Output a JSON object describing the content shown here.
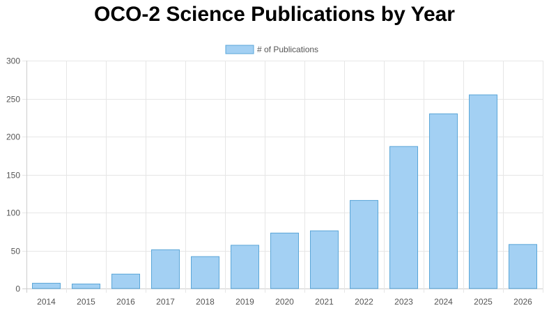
{
  "chart_data": {
    "type": "bar",
    "title": "OCO-2 Science Publications by Year",
    "categories": [
      "2014",
      "2015",
      "2016",
      "2017",
      "2018",
      "2019",
      "2020",
      "2021",
      "2022",
      "2023",
      "2024",
      "2025",
      "2026"
    ],
    "series": [
      {
        "name": "# of Publications",
        "values": [
          7,
          6,
          19,
          51,
          42,
          57,
          73,
          76,
          116,
          187,
          230,
          255,
          58
        ]
      }
    ],
    "ylim": [
      0,
      300
    ],
    "yticks": [
      0,
      50,
      100,
      150,
      200,
      250,
      300
    ],
    "grid": true,
    "legend": "top-center",
    "colors": {
      "bar_fill": "#a3d0f3",
      "bar_stroke": "#5aa6d8",
      "grid": "#e6e6e6",
      "axis": "#cccccc",
      "tick_text": "#555555"
    }
  }
}
